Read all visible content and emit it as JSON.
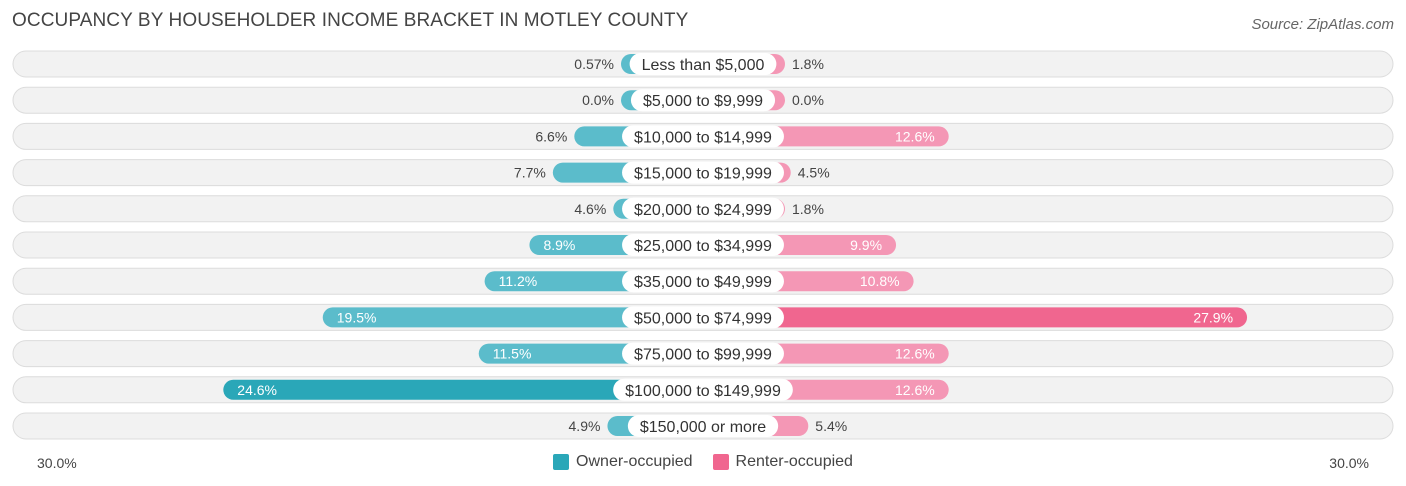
{
  "title": "OCCUPANCY BY HOUSEHOLDER INCOME BRACKET IN MOTLEY COUNTY",
  "source": "Source: ZipAtlas.com",
  "colors": {
    "owner": "#5bbccb",
    "owner_dark": "#2aa7b8",
    "renter": "#f497b5",
    "renter_dark": "#f0668f"
  },
  "chart_data": {
    "type": "bar",
    "orientation": "horizontal-diverging",
    "categories": [
      "Less than $5,000",
      "$5,000 to $9,999",
      "$10,000 to $14,999",
      "$15,000 to $19,999",
      "$20,000 to $24,999",
      "$25,000 to $34,999",
      "$35,000 to $49,999",
      "$50,000 to $74,999",
      "$75,000 to $99,999",
      "$100,000 to $149,999",
      "$150,000 or more"
    ],
    "series": [
      {
        "name": "Owner-occupied",
        "values": [
          0.57,
          0.0,
          6.6,
          7.7,
          4.6,
          8.9,
          11.2,
          19.5,
          11.5,
          24.6,
          4.9
        ],
        "labels": [
          "0.57%",
          "0.0%",
          "6.6%",
          "7.7%",
          "4.6%",
          "8.9%",
          "11.2%",
          "19.5%",
          "11.5%",
          "24.6%",
          "4.9%"
        ]
      },
      {
        "name": "Renter-occupied",
        "values": [
          1.8,
          0.0,
          12.6,
          4.5,
          1.8,
          9.9,
          10.8,
          27.9,
          12.6,
          12.6,
          5.4
        ],
        "labels": [
          "1.8%",
          "0.0%",
          "12.6%",
          "4.5%",
          "1.8%",
          "9.9%",
          "10.8%",
          "27.9%",
          "12.6%",
          "12.6%",
          "5.4%"
        ]
      }
    ],
    "xlim": [
      -30,
      30
    ],
    "axis_labels": {
      "left": "30.0%",
      "right": "30.0%"
    },
    "legend_position": "bottom-center"
  }
}
